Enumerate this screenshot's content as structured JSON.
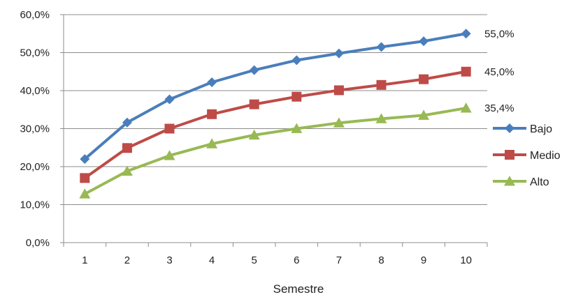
{
  "chart_data": {
    "type": "line",
    "title": "",
    "xlabel": "Semestre",
    "ylabel": "",
    "categories": [
      "1",
      "2",
      "3",
      "4",
      "5",
      "6",
      "7",
      "8",
      "9",
      "10"
    ],
    "ylim": [
      0,
      60
    ],
    "y_ticks": [
      "0,0%",
      "10,0%",
      "20,0%",
      "30,0%",
      "40,0%",
      "50,0%",
      "60,0%"
    ],
    "grid": true,
    "legend_position": "right",
    "series": [
      {
        "name": "Bajo",
        "color": "#4a7ebb",
        "marker": "diamond",
        "values": [
          22.0,
          31.6,
          37.7,
          42.2,
          45.4,
          48.0,
          49.8,
          51.5,
          53.0,
          55.0
        ],
        "end_label": "55,0%"
      },
      {
        "name": "Medio",
        "color": "#be4b48",
        "marker": "square",
        "values": [
          17.0,
          24.9,
          30.0,
          33.8,
          36.4,
          38.4,
          40.1,
          41.5,
          43.0,
          45.0
        ],
        "end_label": "45,0%"
      },
      {
        "name": "Alto",
        "color": "#98b954",
        "marker": "triangle",
        "values": [
          12.8,
          18.8,
          22.9,
          26.0,
          28.3,
          30.0,
          31.5,
          32.6,
          33.5,
          35.4
        ],
        "end_label": "35,4%"
      }
    ]
  }
}
